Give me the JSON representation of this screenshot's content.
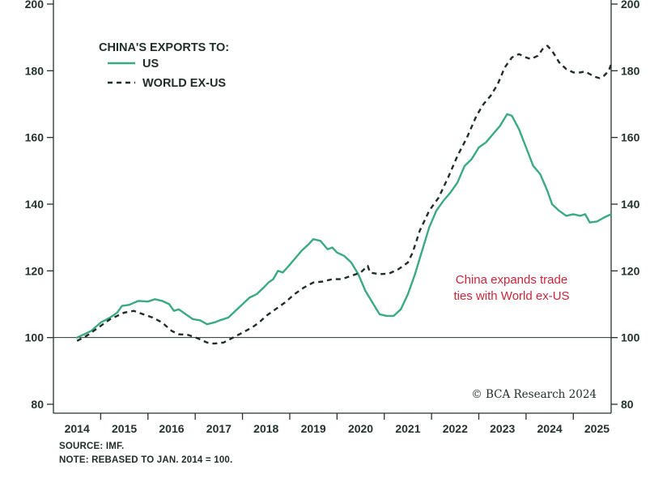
{
  "chart_data": {
    "type": "line",
    "title": "CHINA'S EXPORTS TO:",
    "xlabel": "",
    "ylabel": "",
    "ylim": [
      80,
      200
    ],
    "xlim": [
      2013.5,
      2025.3
    ],
    "yticks": [
      80,
      100,
      120,
      140,
      160,
      180,
      200
    ],
    "xticks": [
      "2014",
      "2015",
      "2016",
      "2017",
      "2018",
      "2019",
      "2020",
      "2021",
      "2022",
      "2023",
      "2024",
      "2025"
    ],
    "baseline": 100,
    "colors": {
      "us": "#3aa985",
      "world": "#1f2d28",
      "annotation": "#c8283a",
      "axis": "#24332d"
    },
    "series": [
      {
        "name": "US",
        "style": "solid",
        "points": [
          [
            2014.0,
            100
          ],
          [
            2014.15,
            101
          ],
          [
            2014.3,
            102
          ],
          [
            2014.5,
            104.5
          ],
          [
            2014.7,
            106
          ],
          [
            2014.85,
            107.5
          ],
          [
            2014.95,
            109.5
          ],
          [
            2015.1,
            109.8
          ],
          [
            2015.3,
            111
          ],
          [
            2015.5,
            110.8
          ],
          [
            2015.65,
            111.5
          ],
          [
            2015.8,
            111
          ],
          [
            2015.95,
            110
          ],
          [
            2016.05,
            108
          ],
          [
            2016.15,
            108.5
          ],
          [
            2016.3,
            107
          ],
          [
            2016.45,
            105.5
          ],
          [
            2016.6,
            105.2
          ],
          [
            2016.75,
            104
          ],
          [
            2016.9,
            104.5
          ],
          [
            2017.05,
            105.3
          ],
          [
            2017.2,
            106
          ],
          [
            2017.35,
            108
          ],
          [
            2017.5,
            110
          ],
          [
            2017.65,
            112
          ],
          [
            2017.8,
            113
          ],
          [
            2017.95,
            115
          ],
          [
            2018.05,
            116.5
          ],
          [
            2018.15,
            117.5
          ],
          [
            2018.25,
            120
          ],
          [
            2018.35,
            119.5
          ],
          [
            2018.45,
            121
          ],
          [
            2018.6,
            123.5
          ],
          [
            2018.75,
            126
          ],
          [
            2018.9,
            128
          ],
          [
            2019.0,
            129.5
          ],
          [
            2019.15,
            129
          ],
          [
            2019.3,
            126.5
          ],
          [
            2019.4,
            127
          ],
          [
            2019.5,
            125.5
          ],
          [
            2019.65,
            124.5
          ],
          [
            2019.8,
            122.5
          ],
          [
            2019.95,
            119
          ],
          [
            2020.1,
            114
          ],
          [
            2020.25,
            110.5
          ],
          [
            2020.4,
            107
          ],
          [
            2020.55,
            106.5
          ],
          [
            2020.7,
            106.5
          ],
          [
            2020.85,
            108.5
          ],
          [
            2021.0,
            113
          ],
          [
            2021.15,
            119
          ],
          [
            2021.3,
            126
          ],
          [
            2021.45,
            133
          ],
          [
            2021.6,
            138
          ],
          [
            2021.75,
            141
          ],
          [
            2021.9,
            143.5
          ],
          [
            2022.05,
            146.5
          ],
          [
            2022.2,
            151.5
          ],
          [
            2022.35,
            153.5
          ],
          [
            2022.5,
            157
          ],
          [
            2022.65,
            158.5
          ],
          [
            2022.8,
            161
          ],
          [
            2022.95,
            163.5
          ],
          [
            2023.1,
            167
          ],
          [
            2023.2,
            166.5
          ],
          [
            2023.35,
            162.5
          ],
          [
            2023.5,
            157
          ],
          [
            2023.65,
            151.5
          ],
          [
            2023.8,
            149
          ],
          [
            2023.95,
            144
          ],
          [
            2024.05,
            140
          ],
          [
            2024.2,
            138
          ],
          [
            2024.35,
            136.5
          ],
          [
            2024.5,
            137
          ],
          [
            2024.65,
            136.5
          ],
          [
            2024.75,
            137
          ],
          [
            2024.85,
            134.5
          ],
          [
            2025.0,
            134.8
          ],
          [
            2025.15,
            136
          ],
          [
            2025.3,
            137
          ]
        ]
      },
      {
        "name": "WORLD EX-US",
        "style": "dashed",
        "points": [
          [
            2014.0,
            99
          ],
          [
            2014.2,
            100.5
          ],
          [
            2014.4,
            102.5
          ],
          [
            2014.55,
            104
          ],
          [
            2014.7,
            105.5
          ],
          [
            2014.85,
            106.5
          ],
          [
            2015.0,
            107.5
          ],
          [
            2015.2,
            108
          ],
          [
            2015.4,
            107
          ],
          [
            2015.6,
            106
          ],
          [
            2015.8,
            104.5
          ],
          [
            2016.0,
            102
          ],
          [
            2016.15,
            101
          ],
          [
            2016.35,
            100.8
          ],
          [
            2016.55,
            99.8
          ],
          [
            2016.75,
            98.5
          ],
          [
            2016.9,
            98.2
          ],
          [
            2017.1,
            98.5
          ],
          [
            2017.3,
            100
          ],
          [
            2017.5,
            101.5
          ],
          [
            2017.7,
            103
          ],
          [
            2017.85,
            104.5
          ],
          [
            2018.0,
            106.5
          ],
          [
            2018.2,
            108.5
          ],
          [
            2018.4,
            110.5
          ],
          [
            2018.6,
            113
          ],
          [
            2018.8,
            115
          ],
          [
            2019.0,
            116.5
          ],
          [
            2019.2,
            116.8
          ],
          [
            2019.4,
            117.5
          ],
          [
            2019.6,
            117.5
          ],
          [
            2019.8,
            118.5
          ],
          [
            2020.0,
            119.5
          ],
          [
            2020.15,
            121.5
          ],
          [
            2020.2,
            119.5
          ],
          [
            2020.4,
            119
          ],
          [
            2020.6,
            119.2
          ],
          [
            2020.8,
            120.5
          ],
          [
            2021.0,
            122.5
          ],
          [
            2021.1,
            125.5
          ],
          [
            2021.25,
            132
          ],
          [
            2021.45,
            138
          ],
          [
            2021.65,
            142
          ],
          [
            2021.85,
            148
          ],
          [
            2022.05,
            154.5
          ],
          [
            2022.25,
            160
          ],
          [
            2022.45,
            166.5
          ],
          [
            2022.6,
            170
          ],
          [
            2022.75,
            172.5
          ],
          [
            2022.9,
            176
          ],
          [
            2023.05,
            181
          ],
          [
            2023.2,
            184
          ],
          [
            2023.35,
            185
          ],
          [
            2023.5,
            184
          ],
          [
            2023.6,
            183.5
          ],
          [
            2023.75,
            184.5
          ],
          [
            2023.85,
            186.5
          ],
          [
            2023.95,
            187.5
          ],
          [
            2024.05,
            186
          ],
          [
            2024.2,
            182.5
          ],
          [
            2024.35,
            180.5
          ],
          [
            2024.5,
            179.5
          ],
          [
            2024.65,
            179.5
          ],
          [
            2024.75,
            179.8
          ],
          [
            2024.85,
            179
          ],
          [
            2024.95,
            178.2
          ],
          [
            2025.05,
            177.8
          ],
          [
            2025.15,
            178.5
          ],
          [
            2025.25,
            180
          ],
          [
            2025.3,
            182
          ]
        ]
      }
    ],
    "legend": {
      "title": "CHINA'S EXPORTS TO:",
      "entries": [
        "US",
        "WORLD EX-US"
      ],
      "placement": "top-left"
    },
    "annotation": {
      "lines": [
        "China expands trade",
        "ties with World ex-US"
      ]
    },
    "credit": "© BCA Research 2024"
  },
  "footer": {
    "source": "SOURCE: IMF.",
    "note": "NOTE: REBASED TO JAN. 2014 = 100."
  }
}
